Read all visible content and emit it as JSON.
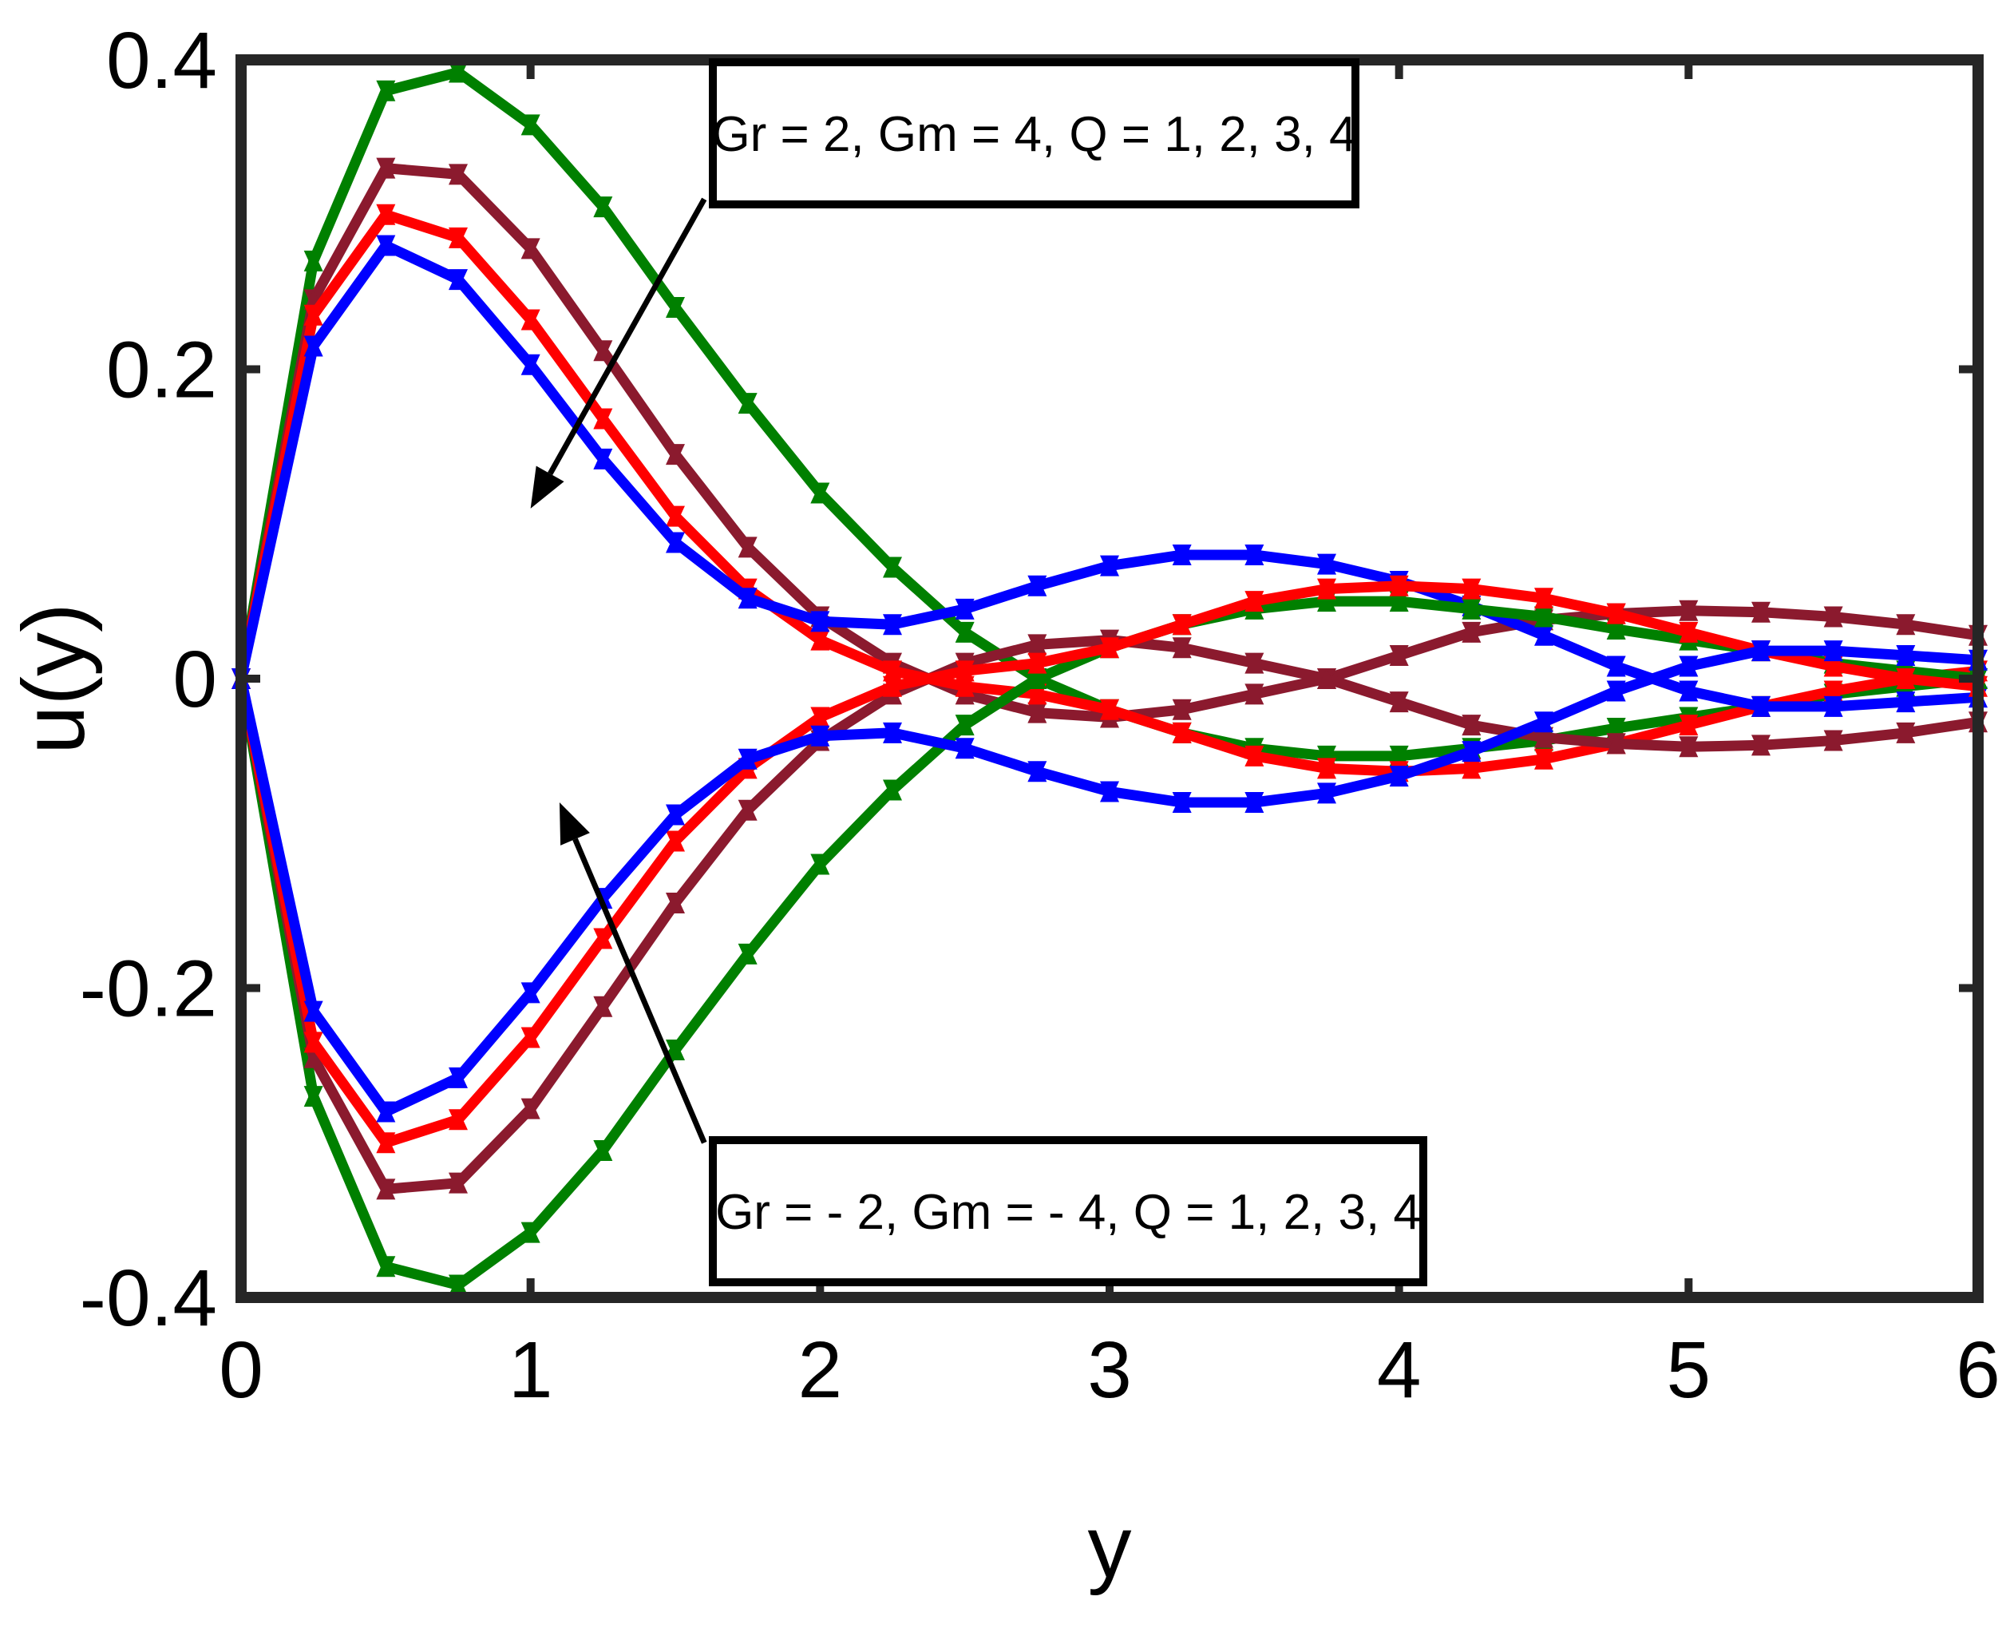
{
  "chart_data": {
    "type": "line",
    "title": "",
    "xlabel": "y",
    "ylabel": "u(y)",
    "xlim": [
      0,
      6
    ],
    "ylim": [
      -0.4,
      0.4
    ],
    "xticks": [
      "0",
      "1",
      "2",
      "3",
      "4",
      "5",
      "6"
    ],
    "yticks": [
      "-0.4",
      "-0.2",
      "0",
      "0.2",
      "0.4"
    ],
    "grid": false,
    "x": [
      0,
      0.25,
      0.5,
      0.75,
      1,
      1.25,
      1.5,
      1.75,
      2,
      2.25,
      2.5,
      2.75,
      3,
      3.25,
      3.5,
      3.75,
      4,
      4.25,
      4.5,
      4.75,
      5,
      5.25,
      5.5,
      5.75,
      6
    ],
    "series": [
      {
        "color": "#008000",
        "values": [
          0,
          0.27,
          0.38,
          0.392,
          0.358,
          0.305,
          0.24,
          0.178,
          0.12,
          0.072,
          0.03,
          0.0,
          -0.02,
          -0.035,
          -0.045,
          -0.05,
          -0.05,
          -0.045,
          -0.04,
          -0.032,
          -0.025,
          -0.018,
          -0.01,
          -0.005,
          0.0
        ]
      },
      {
        "color": "#8B1A2E",
        "values": [
          0,
          0.245,
          0.33,
          0.326,
          0.278,
          0.212,
          0.145,
          0.085,
          0.04,
          0.01,
          -0.01,
          -0.022,
          -0.025,
          -0.02,
          -0.01,
          0.0,
          0.015,
          0.03,
          0.038,
          0.042,
          0.044,
          0.043,
          0.04,
          0.035,
          0.028
        ]
      },
      {
        "color": "#FF0000",
        "values": [
          0,
          0.235,
          0.3,
          0.285,
          0.232,
          0.168,
          0.105,
          0.058,
          0.025,
          0.005,
          -0.005,
          -0.01,
          -0.02,
          -0.035,
          -0.05,
          -0.058,
          -0.06,
          -0.058,
          -0.052,
          -0.042,
          -0.03,
          -0.018,
          -0.008,
          0.0,
          0.005
        ]
      },
      {
        "color": "#0000FF",
        "values": [
          0,
          0.215,
          0.28,
          0.258,
          0.203,
          0.142,
          0.088,
          0.052,
          0.037,
          0.035,
          0.045,
          0.06,
          0.073,
          0.08,
          0.08,
          0.074,
          0.063,
          0.047,
          0.028,
          0.008,
          -0.008,
          -0.018,
          -0.018,
          -0.015,
          -0.012
        ]
      },
      {
        "color": "#008000",
        "values": [
          0,
          -0.27,
          -0.38,
          -0.392,
          -0.358,
          -0.305,
          -0.24,
          -0.178,
          -0.12,
          -0.072,
          -0.03,
          0.0,
          0.02,
          0.035,
          0.045,
          0.05,
          0.05,
          0.045,
          0.04,
          0.032,
          0.025,
          0.018,
          0.01,
          0.005,
          0.0
        ]
      },
      {
        "color": "#8B1A2E",
        "values": [
          0,
          -0.245,
          -0.33,
          -0.326,
          -0.278,
          -0.212,
          -0.145,
          -0.085,
          -0.04,
          -0.01,
          0.01,
          0.022,
          0.025,
          0.02,
          0.01,
          0.0,
          -0.015,
          -0.03,
          -0.038,
          -0.042,
          -0.044,
          -0.043,
          -0.04,
          -0.035,
          -0.028
        ]
      },
      {
        "color": "#FF0000",
        "values": [
          0,
          -0.235,
          -0.3,
          -0.285,
          -0.232,
          -0.168,
          -0.105,
          -0.058,
          -0.025,
          -0.005,
          0.005,
          0.01,
          0.02,
          0.035,
          0.05,
          0.058,
          0.06,
          0.058,
          0.052,
          0.042,
          0.03,
          0.018,
          0.008,
          0.0,
          -0.005
        ]
      },
      {
        "color": "#0000FF",
        "values": [
          0,
          -0.215,
          -0.28,
          -0.258,
          -0.203,
          -0.142,
          -0.088,
          -0.052,
          -0.037,
          -0.035,
          -0.045,
          -0.06,
          -0.073,
          -0.08,
          -0.08,
          -0.074,
          -0.063,
          -0.047,
          -0.028,
          -0.008,
          0.008,
          0.018,
          0.018,
          0.015,
          0.012
        ]
      }
    ],
    "annotations": [
      {
        "text": "Gr = 2, Gm = 4, Q = 1, 2, 3, 4",
        "arrow_from": [
          1.6,
          0.31
        ],
        "arrow_to": [
          1.0,
          0.11
        ]
      },
      {
        "text": "Gr = - 2, Gm = - 4, Q = 1, 2, 3, 4",
        "arrow_from": [
          1.6,
          -0.3
        ],
        "arrow_to": [
          1.1,
          -0.08
        ]
      }
    ]
  }
}
